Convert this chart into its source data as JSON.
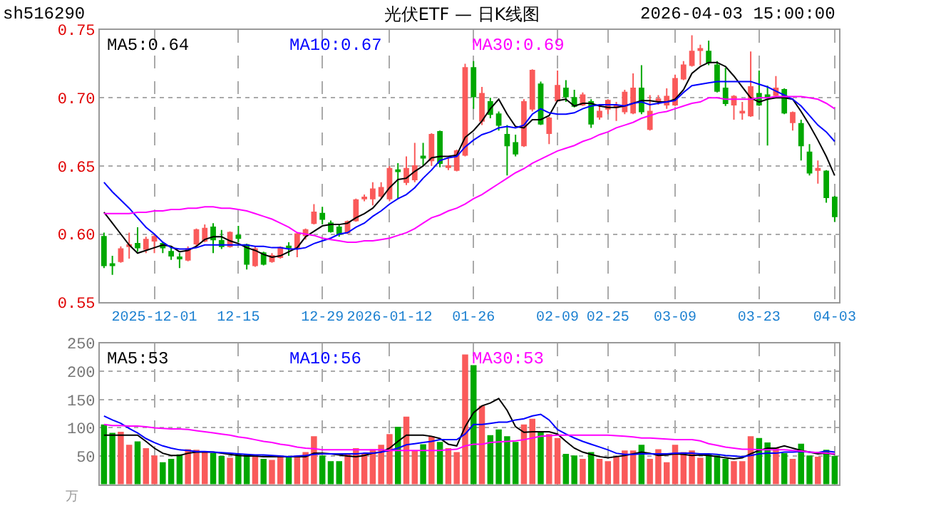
{
  "chart_data": [
    {
      "type": "candlestick",
      "title": "光伏ETF — 日K线图",
      "annotations": [
        "sh516290",
        "2026-04-03 15:00:00"
      ],
      "categories": [
        null,
        null,
        null,
        null,
        null,
        null,
        "2025-12-01",
        null,
        null,
        null,
        null,
        null,
        null,
        null,
        null,
        null,
        "12-15",
        null,
        null,
        null,
        null,
        null,
        null,
        null,
        null,
        null,
        "12-29",
        null,
        null,
        null,
        null,
        null,
        null,
        null,
        "2026-01-12",
        null,
        null,
        null,
        null,
        null,
        null,
        null,
        null,
        null,
        "01-26",
        null,
        null,
        null,
        null,
        null,
        null,
        null,
        null,
        null,
        "02-09",
        null,
        null,
        null,
        null,
        null,
        "02-25",
        null,
        null,
        null,
        null,
        null,
        null,
        null,
        "03-09",
        null,
        null,
        null,
        null,
        null,
        null,
        null,
        null,
        null,
        "03-23",
        null,
        null,
        null,
        null,
        null,
        null,
        null,
        null,
        "04-03"
      ],
      "ohlc": [
        [
          0.598,
          0.601,
          0.575,
          0.577
        ],
        [
          0.578,
          0.584,
          0.57,
          0.577
        ],
        [
          0.58,
          0.591,
          0.579,
          0.589
        ],
        [
          0.591,
          0.601,
          0.582,
          0.592
        ],
        [
          0.593,
          0.605,
          0.587,
          0.59
        ],
        [
          0.589,
          0.598,
          0.586,
          0.596
        ],
        [
          0.595,
          0.6,
          0.586,
          0.598
        ],
        [
          0.593,
          0.594,
          0.586,
          0.59
        ],
        [
          0.587,
          0.59,
          0.581,
          0.584
        ],
        [
          0.583,
          0.586,
          0.575,
          0.582
        ],
        [
          0.581,
          0.591,
          0.58,
          0.589
        ],
        [
          0.593,
          0.604,
          0.591,
          0.603
        ],
        [
          0.595,
          0.607,
          0.594,
          0.604
        ],
        [
          0.605,
          0.608,
          0.586,
          0.596
        ],
        [
          0.595,
          0.603,
          0.589,
          0.591
        ],
        [
          0.591,
          0.602,
          0.59,
          0.601
        ],
        [
          0.599,
          0.606,
          0.594,
          0.597
        ],
        [
          0.592,
          0.593,
          0.574,
          0.578
        ],
        [
          0.577,
          0.591,
          0.576,
          0.589
        ],
        [
          0.586,
          0.587,
          0.577,
          0.578
        ],
        [
          0.58,
          0.586,
          0.579,
          0.584
        ],
        [
          0.583,
          0.591,
          0.582,
          0.59
        ],
        [
          0.591,
          0.594,
          0.584,
          0.59
        ],
        [
          0.59,
          0.601,
          0.583,
          0.6
        ],
        [
          0.599,
          0.604,
          0.596,
          0.603
        ],
        [
          0.608,
          0.622,
          0.607,
          0.616
        ],
        [
          0.615,
          0.62,
          0.607,
          0.611
        ],
        [
          0.608,
          0.61,
          0.601,
          0.602
        ],
        [
          0.605,
          0.607,
          0.598,
          0.6
        ],
        [
          0.601,
          0.61,
          0.6,
          0.609
        ],
        [
          0.61,
          0.626,
          0.609,
          0.625
        ],
        [
          0.626,
          0.629,
          0.624,
          0.627
        ],
        [
          0.626,
          0.638,
          0.621,
          0.633
        ],
        [
          0.628,
          0.638,
          0.626,
          0.634
        ],
        [
          0.626,
          0.65,
          0.624,
          0.648
        ],
        [
          0.647,
          0.652,
          0.626,
          0.646
        ],
        [
          0.638,
          0.657,
          0.636,
          0.648
        ],
        [
          0.64,
          0.667,
          0.638,
          0.65
        ],
        [
          0.657,
          0.667,
          0.65,
          0.656
        ],
        [
          0.654,
          0.674,
          0.65,
          0.673
        ],
        [
          0.675,
          0.676,
          0.649,
          0.652
        ],
        [
          0.649,
          0.657,
          0.647,
          0.65
        ],
        [
          0.647,
          0.662,
          0.646,
          0.661
        ],
        [
          0.658,
          0.725,
          0.657,
          0.722
        ],
        [
          0.722,
          0.727,
          0.692,
          0.701
        ],
        [
          0.683,
          0.708,
          0.68,
          0.703
        ],
        [
          0.697,
          0.7,
          0.685,
          0.688
        ],
        [
          0.688,
          0.69,
          0.676,
          0.68
        ],
        [
          0.673,
          0.68,
          0.643,
          0.665
        ],
        [
          0.667,
          0.673,
          0.657,
          0.659
        ],
        [
          0.665,
          0.699,
          0.664,
          0.697
        ],
        [
          0.692,
          0.721,
          0.69,
          0.72
        ],
        [
          0.71,
          0.712,
          0.68,
          0.681
        ],
        [
          0.674,
          0.686,
          0.666,
          0.685
        ],
        [
          0.698,
          0.72,
          0.697,
          0.709
        ],
        [
          0.707,
          0.713,
          0.697,
          0.701
        ],
        [
          0.7,
          0.706,
          0.693,
          0.694
        ],
        [
          0.695,
          0.704,
          0.694,
          0.702
        ],
        [
          0.697,
          0.699,
          0.678,
          0.681
        ],
        [
          0.686,
          0.694,
          0.684,
          0.69
        ],
        [
          0.692,
          0.699,
          0.688,
          0.698
        ],
        [
          0.693,
          0.697,
          0.683,
          0.694
        ],
        [
          0.69,
          0.706,
          0.688,
          0.704
        ],
        [
          0.689,
          0.718,
          0.688,
          0.707
        ],
        [
          0.707,
          0.724,
          0.688,
          0.69
        ],
        [
          0.677,
          0.702,
          0.676,
          0.69
        ],
        [
          0.698,
          0.702,
          0.695,
          0.699
        ],
        [
          0.695,
          0.707,
          0.692,
          0.701
        ],
        [
          0.695,
          0.717,
          0.694,
          0.714
        ],
        [
          0.714,
          0.727,
          0.713,
          0.724
        ],
        [
          0.724,
          0.746,
          0.723,
          0.734
        ],
        [
          0.735,
          0.739,
          0.724,
          0.736
        ],
        [
          0.734,
          0.742,
          0.724,
          0.726
        ],
        [
          0.724,
          0.727,
          0.704,
          0.705
        ],
        [
          0.707,
          0.722,
          0.694,
          0.696
        ],
        [
          0.695,
          0.702,
          0.684,
          0.701
        ],
        [
          0.689,
          0.697,
          0.684,
          0.69
        ],
        [
          0.687,
          0.734,
          0.686,
          0.708
        ],
        [
          0.703,
          0.72,
          0.694,
          0.695
        ],
        [
          0.702,
          0.709,
          0.665,
          0.7
        ],
        [
          0.702,
          0.716,
          0.701,
          0.707
        ],
        [
          0.706,
          0.707,
          0.688,
          0.689
        ],
        [
          0.682,
          0.69,
          0.676,
          0.689
        ],
        [
          0.681,
          0.684,
          0.654,
          0.665
        ],
        [
          0.66,
          0.666,
          0.643,
          0.645
        ],
        [
          0.647,
          0.654,
          0.637,
          0.648
        ],
        [
          0.646,
          0.647,
          0.623,
          0.627
        ],
        [
          0.627,
          0.628,
          0.609,
          0.613
        ]
      ],
      "colors": [
        "#00a800",
        "#00a800",
        "#fa5a5a",
        "#fa5a5a",
        "#00a800",
        "#fa5a5a",
        "#fa5a5a",
        "#00a800",
        "#00a800",
        "#00a800",
        "#fa5a5a",
        "#fa5a5a",
        "#fa5a5a",
        "#00a800",
        "#00a800",
        "#fa5a5a",
        "#00a800",
        "#00a800",
        "#fa5a5a",
        "#00a800",
        "#fa5a5a",
        "#fa5a5a",
        "#00a800",
        "#fa5a5a",
        "#fa5a5a",
        "#fa5a5a",
        "#00a800",
        "#00a800",
        "#00a800",
        "#fa5a5a",
        "#fa5a5a",
        "#fa5a5a",
        "#fa5a5a",
        "#fa5a5a",
        "#fa5a5a",
        "#00a800",
        "#fa5a5a",
        "#fa5a5a",
        "#00a800",
        "#fa5a5a",
        "#00a800",
        "#fa5a5a",
        "#fa5a5a",
        "#fa5a5a",
        "#00a800",
        "#fa5a5a",
        "#00a800",
        "#00a800",
        "#00a800",
        "#00a800",
        "#fa5a5a",
        "#fa5a5a",
        "#00a800",
        "#fa5a5a",
        "#fa5a5a",
        "#00a800",
        "#00a800",
        "#fa5a5a",
        "#00a800",
        "#fa5a5a",
        "#fa5a5a",
        "#fa5a5a",
        "#fa5a5a",
        "#fa5a5a",
        "#00a800",
        "#fa5a5a",
        "#fa5a5a",
        "#fa5a5a",
        "#fa5a5a",
        "#fa5a5a",
        "#fa5a5a",
        "#fa5a5a",
        "#00a800",
        "#00a800",
        "#00a800",
        "#fa5a5a",
        "#fa5a5a",
        "#fa5a5a",
        "#00a800",
        "#00a800",
        "#fa5a5a",
        "#00a800",
        "#fa5a5a",
        "#00a800",
        "#00a800",
        "#fa5a5a",
        "#00a800",
        "#00a800"
      ],
      "series": [
        {
          "type": "line",
          "name": "MA5:0.64",
          "color": "#000000",
          "values": [
            0.616,
            0.608,
            0.6,
            0.592,
            0.586,
            0.588,
            0.59,
            0.592,
            0.591,
            0.587,
            0.588,
            0.591,
            0.596,
            0.598,
            0.598,
            0.595,
            0.593,
            0.59,
            0.588,
            0.585,
            0.583,
            0.584,
            0.587,
            0.59,
            0.598,
            0.602,
            0.606,
            0.607,
            0.607,
            0.608,
            0.612,
            0.615,
            0.619,
            0.626,
            0.634,
            0.64,
            0.641,
            0.646,
            0.65,
            0.656,
            0.657,
            0.657,
            0.658,
            0.671,
            0.676,
            0.683,
            0.692,
            0.699,
            0.688,
            0.679,
            0.678,
            0.684,
            0.684,
            0.687,
            0.698,
            0.699,
            0.694,
            0.696,
            0.696,
            0.694,
            0.693,
            0.693,
            0.694,
            0.696,
            0.698,
            0.698,
            0.697,
            0.697,
            0.699,
            0.706,
            0.718,
            0.723,
            0.726,
            0.726,
            0.723,
            0.716,
            0.708,
            0.7,
            0.697,
            0.699,
            0.7,
            0.7,
            0.699,
            0.69,
            0.68,
            0.669,
            0.657,
            0.643
          ]
        },
        {
          "type": "line",
          "name": "MA10:0.67",
          "color": "#0000ff",
          "values": [
            0.638,
            0.631,
            0.625,
            0.619,
            0.612,
            0.605,
            0.6,
            0.594,
            0.59,
            0.589,
            0.589,
            0.59,
            0.592,
            0.592,
            0.592,
            0.592,
            0.592,
            0.592,
            0.591,
            0.591,
            0.59,
            0.59,
            0.589,
            0.589,
            0.59,
            0.593,
            0.595,
            0.597,
            0.6,
            0.601,
            0.605,
            0.608,
            0.613,
            0.617,
            0.622,
            0.626,
            0.629,
            0.634,
            0.641,
            0.647,
            0.654,
            0.656,
            0.657,
            0.664,
            0.669,
            0.673,
            0.675,
            0.678,
            0.679,
            0.678,
            0.68,
            0.688,
            0.692,
            0.689,
            0.688,
            0.688,
            0.689,
            0.692,
            0.694,
            0.695,
            0.695,
            0.695,
            0.694,
            0.696,
            0.697,
            0.695,
            0.696,
            0.697,
            0.698,
            0.704,
            0.709,
            0.71,
            0.711,
            0.712,
            0.712,
            0.712,
            0.712,
            0.712,
            0.71,
            0.708,
            0.705,
            0.702,
            0.699,
            0.694,
            0.687,
            0.68,
            0.675,
            0.668
          ]
        },
        {
          "type": "line",
          "name": "MA30:0.69",
          "color": "#ff00ff",
          "values": [
            0.615,
            0.615,
            0.615,
            0.615,
            0.616,
            0.616,
            0.617,
            0.617,
            0.618,
            0.618,
            0.619,
            0.619,
            0.62,
            0.62,
            0.619,
            0.619,
            0.618,
            0.617,
            0.615,
            0.613,
            0.611,
            0.608,
            0.605,
            0.601,
            0.6,
            0.599,
            0.597,
            0.596,
            0.595,
            0.594,
            0.594,
            0.595,
            0.595,
            0.596,
            0.597,
            0.599,
            0.601,
            0.604,
            0.608,
            0.612,
            0.614,
            0.617,
            0.619,
            0.622,
            0.626,
            0.629,
            0.633,
            0.637,
            0.641,
            0.645,
            0.648,
            0.652,
            0.655,
            0.658,
            0.661,
            0.663,
            0.665,
            0.668,
            0.67,
            0.673,
            0.675,
            0.678,
            0.68,
            0.682,
            0.685,
            0.687,
            0.689,
            0.69,
            0.692,
            0.694,
            0.696,
            0.697,
            0.7,
            0.7,
            0.699,
            0.699,
            0.699,
            0.699,
            0.7,
            0.7,
            0.701,
            0.701,
            0.701,
            0.701,
            0.7,
            0.699,
            0.696,
            0.692
          ]
        }
      ],
      "ylim": [
        0.55,
        0.75
      ],
      "yticks": [
        0.55,
        {
          "value": 0.6,
          "label": "0.60"
        },
        0.65,
        {
          "value": 0.7,
          "label": "0.70"
        },
        0.75
      ],
      "grid": true,
      "legend": false,
      "marker": "none",
      "line_style": "solid"
    },
    {
      "type": "bar",
      "ylabel": "万",
      "categories": [
        null,
        null,
        null,
        null,
        null,
        null,
        null,
        null,
        null,
        null,
        null,
        null,
        null,
        null,
        null,
        null,
        null,
        null,
        null,
        null,
        null,
        null,
        null,
        null,
        null,
        null,
        null,
        null,
        null,
        null,
        null,
        null,
        null,
        null,
        null,
        null,
        null,
        null,
        null,
        null,
        null,
        null,
        null,
        null,
        null,
        null,
        null,
        null,
        null,
        null,
        null,
        null,
        null,
        null,
        null,
        null,
        null,
        null,
        null,
        null,
        null,
        null,
        null,
        null,
        null,
        null,
        null,
        null,
        null,
        null,
        null,
        null,
        null,
        null,
        null,
        null,
        null,
        null,
        null,
        null,
        null,
        null,
        null,
        null,
        null,
        null,
        null,
        null
      ],
      "values": [
        106,
        91,
        93,
        70,
        76,
        64,
        51,
        39,
        45,
        53,
        62,
        61,
        57,
        55,
        50,
        47,
        54,
        53,
        51,
        45,
        43,
        50,
        49,
        51,
        57,
        85,
        51,
        41,
        41,
        54,
        64,
        55,
        62,
        70,
        89,
        102,
        120,
        60,
        71,
        85,
        75,
        64,
        57,
        230,
        211,
        139,
        87,
        97,
        85,
        75,
        106,
        116,
        93,
        89,
        82,
        54,
        51,
        45,
        57,
        45,
        41,
        49,
        60,
        60,
        70,
        45,
        62,
        39,
        70,
        57,
        60,
        47,
        54,
        51,
        45,
        41,
        41,
        85,
        82,
        74,
        64,
        55,
        45,
        72,
        51,
        49,
        61,
        50
      ],
      "colors": [
        "#00a800",
        "#00a800",
        "#fa5a5a",
        "#fa5a5a",
        "#00a800",
        "#fa5a5a",
        "#fa5a5a",
        "#00a800",
        "#00a800",
        "#00a800",
        "#fa5a5a",
        "#fa5a5a",
        "#fa5a5a",
        "#00a800",
        "#00a800",
        "#fa5a5a",
        "#00a800",
        "#00a800",
        "#fa5a5a",
        "#00a800",
        "#fa5a5a",
        "#fa5a5a",
        "#00a800",
        "#fa5a5a",
        "#fa5a5a",
        "#fa5a5a",
        "#00a800",
        "#00a800",
        "#00a800",
        "#fa5a5a",
        "#fa5a5a",
        "#fa5a5a",
        "#fa5a5a",
        "#fa5a5a",
        "#fa5a5a",
        "#00a800",
        "#fa5a5a",
        "#fa5a5a",
        "#00a800",
        "#fa5a5a",
        "#00a800",
        "#fa5a5a",
        "#fa5a5a",
        "#fa5a5a",
        "#00a800",
        "#fa5a5a",
        "#00a800",
        "#00a800",
        "#00a800",
        "#00a800",
        "#fa5a5a",
        "#fa5a5a",
        "#00a800",
        "#fa5a5a",
        "#fa5a5a",
        "#00a800",
        "#00a800",
        "#fa5a5a",
        "#00a800",
        "#fa5a5a",
        "#fa5a5a",
        "#fa5a5a",
        "#fa5a5a",
        "#fa5a5a",
        "#00a800",
        "#fa5a5a",
        "#fa5a5a",
        "#fa5a5a",
        "#fa5a5a",
        "#fa5a5a",
        "#fa5a5a",
        "#fa5a5a",
        "#00a800",
        "#00a800",
        "#00a800",
        "#fa5a5a",
        "#fa5a5a",
        "#fa5a5a",
        "#00a800",
        "#00a800",
        "#fa5a5a",
        "#00a800",
        "#fa5a5a",
        "#00a800",
        "#00a800",
        "#fa5a5a",
        "#00a800",
        "#00a800"
      ],
      "series": [
        {
          "type": "line",
          "name": "MA5:53",
          "color": "#000000",
          "values": [
            87,
            87,
            87,
            87,
            87,
            76,
            64,
            55,
            51,
            51,
            55,
            57,
            57,
            57,
            55,
            53,
            51,
            50,
            50,
            49,
            49,
            49,
            49,
            49,
            49,
            55,
            55,
            54,
            52,
            50,
            49,
            51,
            55,
            57,
            64,
            76,
            87,
            87,
            87,
            85,
            81,
            71,
            68,
            102,
            127,
            139,
            144,
            152,
            131,
            102,
            92,
            93,
            93,
            93,
            89,
            76,
            64,
            57,
            53,
            49,
            47,
            49,
            51,
            54,
            57,
            55,
            51,
            52,
            54,
            53,
            51,
            52,
            51,
            49,
            47,
            45,
            47,
            54,
            60,
            64,
            64,
            68,
            64,
            60,
            57,
            54,
            55,
            53
          ]
        },
        {
          "type": "line",
          "name": "MA10:56",
          "color": "#0000ff",
          "values": [
            121,
            114,
            108,
            99,
            91,
            81,
            74,
            68,
            64,
            61,
            60,
            58,
            58,
            57,
            56,
            55,
            54,
            53,
            52,
            52,
            51,
            50,
            49,
            50,
            51,
            53,
            54,
            54,
            54,
            54,
            54,
            55,
            55,
            57,
            60,
            64,
            70,
            72,
            74,
            76,
            79,
            79,
            79,
            89,
            106,
            106,
            108,
            110,
            110,
            114,
            116,
            121,
            124,
            114,
            97,
            89,
            82,
            76,
            71,
            66,
            61,
            55,
            53,
            53,
            54,
            54,
            54,
            54,
            55,
            55,
            55,
            54,
            54,
            53,
            51,
            50,
            49,
            51,
            54,
            55,
            55,
            57,
            57,
            58,
            57,
            56,
            59,
            57
          ]
        },
        {
          "type": "line",
          "name": "MA30:53",
          "color": "#ff00ff",
          "values": [
            106,
            104,
            104,
            103,
            103,
            102,
            100,
            99,
            98,
            98,
            97,
            95,
            93,
            91,
            89,
            87,
            84,
            82,
            79,
            76,
            74,
            71,
            69,
            66,
            64,
            63,
            61,
            61,
            61,
            61,
            61,
            61,
            61,
            61,
            60,
            60,
            60,
            60,
            60,
            60,
            60,
            61,
            62,
            68,
            71,
            71,
            74,
            75,
            76,
            77,
            79,
            82,
            85,
            86,
            87,
            87,
            87,
            87,
            87,
            87,
            87,
            86,
            85,
            84,
            82,
            82,
            81,
            80,
            79,
            79,
            79,
            77,
            72,
            69,
            66,
            64,
            62,
            62,
            61,
            61,
            61,
            61,
            60,
            59,
            57,
            56,
            55,
            54
          ]
        }
      ],
      "ylim": [
        0,
        250
      ],
      "yticks": [
        50,
        100,
        150,
        200,
        250
      ],
      "grid": true,
      "tick_labels": "y",
      "legend": false,
      "marker": "none",
      "line_style": "solid"
    }
  ]
}
